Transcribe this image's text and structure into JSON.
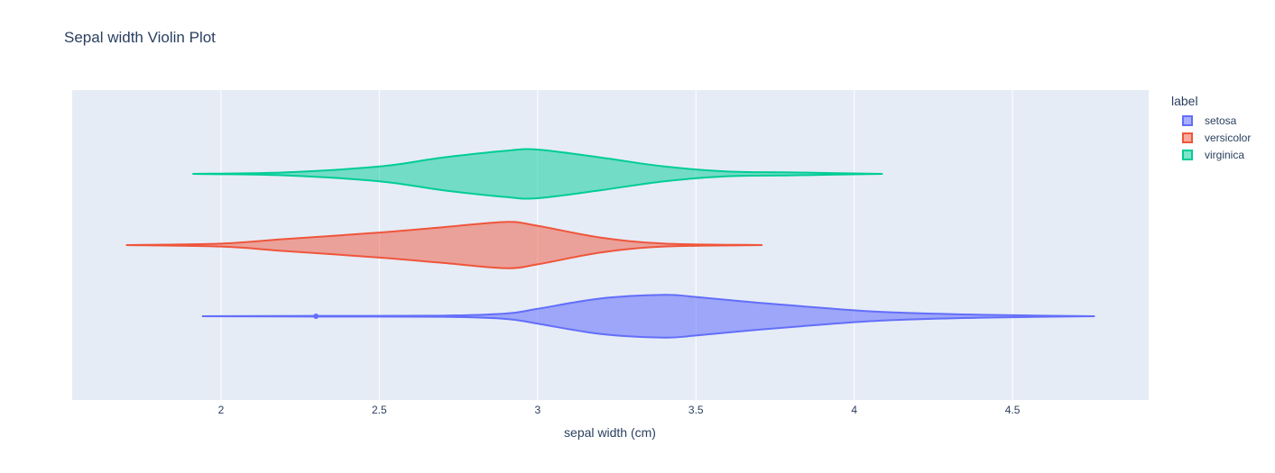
{
  "chart_data": {
    "type": "violin",
    "title": "Sepal width Violin Plot",
    "xlabel": "sepal width (cm)",
    "ylabel": "",
    "xlim": [
      1.53,
      4.93
    ],
    "xticks": [
      "2",
      "2.5",
      "3",
      "3.5",
      "4",
      "4.5"
    ],
    "xtick_values": [
      2,
      2.5,
      3,
      3.5,
      4,
      4.5
    ],
    "orientation": "horizontal",
    "grid": true,
    "plot_background": "#e5ecf6",
    "legend": {
      "title": "label",
      "placement": "right"
    },
    "series": [
      {
        "name": "setosa",
        "color": "#636efa",
        "fill": "rgba(99,110,250,0.55)",
        "min": 1.94,
        "max": 4.76,
        "outlier": 2.3,
        "density": [
          [
            1.94,
            0.0
          ],
          [
            2.3,
            0.01
          ],
          [
            2.7,
            0.02
          ],
          [
            2.9,
            0.09
          ],
          [
            3.0,
            0.25
          ],
          [
            3.2,
            0.6
          ],
          [
            3.4,
            0.72
          ],
          [
            3.5,
            0.65
          ],
          [
            3.7,
            0.45
          ],
          [
            3.9,
            0.28
          ],
          [
            4.1,
            0.14
          ],
          [
            4.4,
            0.05
          ],
          [
            4.76,
            0.0
          ]
        ]
      },
      {
        "name": "versicolor",
        "color": "#ef553b",
        "fill": "rgba(239,85,59,0.5)",
        "min": 1.7,
        "max": 3.71,
        "density": [
          [
            1.7,
            0.0
          ],
          [
            2.0,
            0.05
          ],
          [
            2.2,
            0.2
          ],
          [
            2.5,
            0.42
          ],
          [
            2.7,
            0.6
          ],
          [
            2.9,
            0.78
          ],
          [
            3.0,
            0.65
          ],
          [
            3.2,
            0.25
          ],
          [
            3.4,
            0.05
          ],
          [
            3.71,
            0.0
          ]
        ]
      },
      {
        "name": "virginica",
        "color": "#00cc96",
        "fill": "rgba(0,204,150,0.5)",
        "min": 1.91,
        "max": 4.09,
        "density": [
          [
            1.91,
            0.0
          ],
          [
            2.2,
            0.05
          ],
          [
            2.5,
            0.25
          ],
          [
            2.7,
            0.55
          ],
          [
            2.9,
            0.78
          ],
          [
            3.0,
            0.82
          ],
          [
            3.2,
            0.55
          ],
          [
            3.4,
            0.25
          ],
          [
            3.6,
            0.08
          ],
          [
            3.8,
            0.05
          ],
          [
            4.09,
            0.0
          ]
        ]
      }
    ]
  }
}
